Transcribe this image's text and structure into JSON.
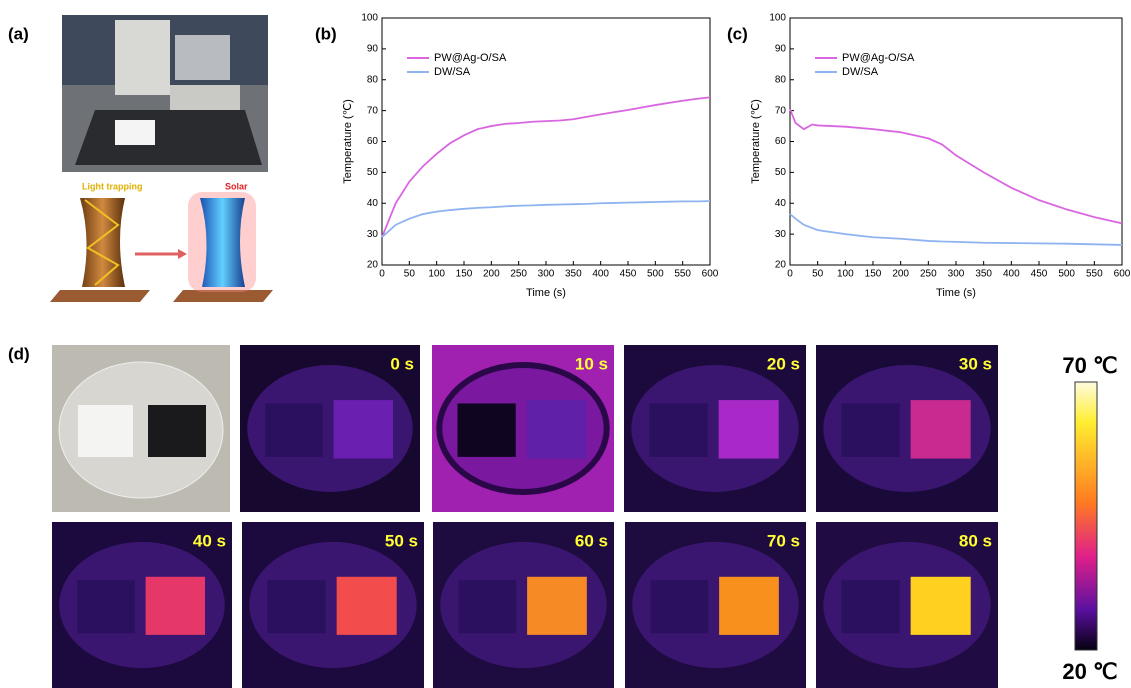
{
  "panel_labels": [
    "(a)",
    "(b)",
    "(c)",
    "(d)"
  ],
  "photo_labels": {
    "left": "Light trapping",
    "right": "Solar"
  },
  "thermal_images": {
    "labels": [
      "0 s",
      "10 s",
      "20 s",
      "30 s",
      "40 s",
      "50 s",
      "60 s",
      "70 s",
      "80 s"
    ]
  },
  "colorbar": {
    "max_label": "70 ℃",
    "min_label": "20 ℃"
  },
  "chart_data": [
    {
      "type": "line",
      "x_label": "Time (s)",
      "y_label": "Temperature (℃)",
      "xlim": [
        0,
        600
      ],
      "xticks": [
        0,
        50,
        100,
        150,
        200,
        250,
        300,
        350,
        400,
        450,
        500,
        550,
        600
      ],
      "ylim": [
        20,
        100
      ],
      "yticks": [
        20,
        30,
        40,
        50,
        60,
        70,
        80,
        90,
        100
      ],
      "legend": "upper left",
      "x": [
        0,
        25,
        50,
        75,
        100,
        125,
        150,
        175,
        200,
        225,
        250,
        275,
        300,
        325,
        350,
        375,
        400,
        425,
        450,
        475,
        500,
        525,
        550,
        575,
        600
      ],
      "series": [
        {
          "name": "PW@Ag-O/SA",
          "color": "#d966e0",
          "values": [
            29,
            40,
            47,
            52,
            56,
            59.5,
            62,
            64,
            65,
            65.7,
            66,
            66.4,
            66.6,
            66.8,
            67.2,
            68,
            68.8,
            69.5,
            70.2,
            71,
            71.8,
            72.5,
            73.2,
            73.8,
            74.3
          ]
        },
        {
          "name": "DW/SA",
          "color": "#8fb3f0",
          "values": [
            29,
            33,
            35,
            36.5,
            37.3,
            37.8,
            38.2,
            38.5,
            38.7,
            39,
            39.2,
            39.3,
            39.5,
            39.6,
            39.7,
            39.8,
            40,
            40.1,
            40.2,
            40.3,
            40.4,
            40.5,
            40.6,
            40.6,
            40.7
          ]
        }
      ]
    },
    {
      "type": "line",
      "x_label": "Time (s)",
      "y_label": "Temperature (℃)",
      "xlim": [
        0,
        600
      ],
      "xticks": [
        0,
        50,
        100,
        150,
        200,
        250,
        300,
        350,
        400,
        450,
        500,
        550,
        600
      ],
      "ylim": [
        20,
        100
      ],
      "yticks": [
        20,
        30,
        40,
        50,
        60,
        70,
        80,
        90,
        100
      ],
      "legend": "upper left",
      "x": [
        0,
        10,
        25,
        40,
        50,
        100,
        150,
        200,
        250,
        275,
        300,
        350,
        400,
        450,
        500,
        550,
        600
      ],
      "series": [
        {
          "name": "PW@Ag-O/SA",
          "color": "#d966e0",
          "values": [
            70.5,
            66,
            64,
            65.5,
            65.2,
            64.8,
            64,
            63,
            61,
            59,
            55.5,
            50,
            45,
            41,
            38,
            35.5,
            33.5
          ]
        },
        {
          "name": "DW/SA",
          "color": "#8fb3f0",
          "values": [
            36.5,
            35,
            33,
            32,
            31.3,
            30,
            29,
            28.5,
            27.8,
            27.6,
            27.5,
            27.2,
            27.1,
            27,
            26.9,
            26.7,
            26.5
          ]
        }
      ]
    }
  ]
}
